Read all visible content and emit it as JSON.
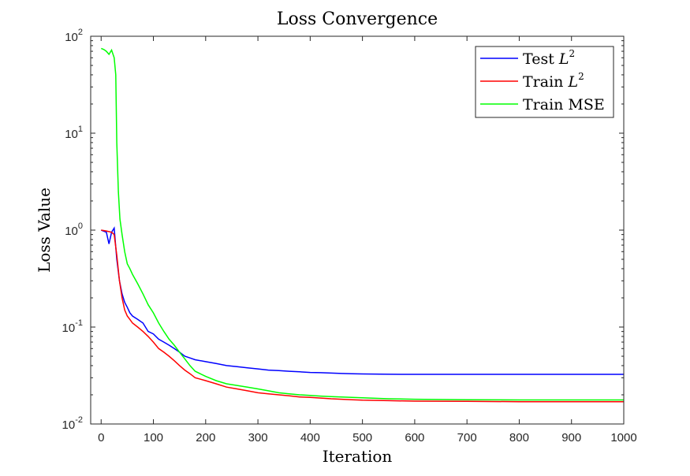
{
  "chart_data": {
    "type": "line",
    "title": "Loss Convergence",
    "xlabel": "Iteration",
    "ylabel": "Loss Value",
    "xlim": [
      -20,
      1000
    ],
    "ylim_log10": [
      -2,
      2
    ],
    "y_scale": "log",
    "x_ticks": [
      0,
      100,
      200,
      300,
      400,
      500,
      600,
      700,
      800,
      900,
      1000
    ],
    "x_tick_labels": [
      "0",
      "100",
      "200",
      "300",
      "400",
      "500",
      "600",
      "700",
      "800",
      "900",
      "1000"
    ],
    "y_ticks": [
      {
        "base": "10",
        "exp": "-2",
        "value": 0.01
      },
      {
        "base": "10",
        "exp": "-1",
        "value": 0.1
      },
      {
        "base": "10",
        "exp": "0",
        "value": 1
      },
      {
        "base": "10",
        "exp": "1",
        "value": 10
      },
      {
        "base": "10",
        "exp": "2",
        "value": 100
      }
    ],
    "legend": {
      "position": "top-right",
      "entries": [
        {
          "label": "Test",
          "math": "L",
          "sup": "2",
          "color": "#0000ff"
        },
        {
          "label": "Train",
          "math": "L",
          "sup": "2",
          "color": "#ff0000"
        },
        {
          "label": "Train MSE",
          "math": "",
          "sup": "",
          "color": "#00ff00"
        }
      ]
    },
    "series": [
      {
        "name": "Test L2",
        "color": "#0000ff",
        "x": [
          0,
          10,
          15,
          20,
          25,
          30,
          35,
          40,
          45,
          50,
          55,
          60,
          70,
          80,
          90,
          100,
          110,
          120,
          130,
          140,
          150,
          160,
          170,
          180,
          200,
          220,
          240,
          260,
          280,
          300,
          320,
          340,
          360,
          380,
          400,
          420,
          440,
          460,
          480,
          500,
          550,
          600,
          700,
          800,
          900,
          1000
        ],
        "y": [
          1.0,
          0.95,
          0.72,
          0.95,
          1.05,
          0.5,
          0.3,
          0.22,
          0.18,
          0.16,
          0.14,
          0.13,
          0.12,
          0.11,
          0.09,
          0.085,
          0.075,
          0.07,
          0.065,
          0.06,
          0.055,
          0.05,
          0.048,
          0.046,
          0.044,
          0.042,
          0.04,
          0.039,
          0.038,
          0.037,
          0.036,
          0.0355,
          0.035,
          0.0345,
          0.034,
          0.0338,
          0.0335,
          0.0332,
          0.033,
          0.0328,
          0.0326,
          0.0325,
          0.0325,
          0.0325,
          0.0325,
          0.0325
        ]
      },
      {
        "name": "Train L2",
        "color": "#ff0000",
        "x": [
          0,
          10,
          20,
          25,
          30,
          35,
          40,
          45,
          50,
          55,
          60,
          70,
          80,
          90,
          100,
          110,
          120,
          130,
          140,
          150,
          160,
          170,
          180,
          200,
          220,
          240,
          260,
          280,
          300,
          320,
          340,
          360,
          380,
          400,
          420,
          440,
          460,
          480,
          500,
          550,
          600,
          700,
          800,
          900,
          1000
        ],
        "y": [
          1.0,
          0.98,
          0.95,
          0.9,
          0.55,
          0.3,
          0.2,
          0.15,
          0.13,
          0.12,
          0.11,
          0.1,
          0.09,
          0.08,
          0.07,
          0.06,
          0.055,
          0.05,
          0.045,
          0.04,
          0.036,
          0.033,
          0.03,
          0.028,
          0.026,
          0.024,
          0.023,
          0.022,
          0.021,
          0.0205,
          0.02,
          0.0195,
          0.019,
          0.0188,
          0.0185,
          0.0182,
          0.018,
          0.0178,
          0.0176,
          0.0174,
          0.0172,
          0.0171,
          0.017,
          0.017,
          0.017
        ]
      },
      {
        "name": "Train MSE",
        "color": "#00ff00",
        "x": [
          0,
          5,
          10,
          15,
          20,
          25,
          28,
          30,
          33,
          36,
          40,
          45,
          50,
          55,
          60,
          70,
          80,
          90,
          100,
          110,
          120,
          130,
          140,
          150,
          160,
          170,
          180,
          200,
          220,
          240,
          260,
          280,
          300,
          320,
          340,
          360,
          380,
          400,
          420,
          440,
          460,
          480,
          500,
          550,
          600,
          700,
          800,
          900,
          1000
        ],
        "y": [
          75,
          73,
          70,
          65,
          72,
          60,
          40,
          8,
          2.5,
          1.3,
          0.9,
          0.6,
          0.45,
          0.4,
          0.35,
          0.28,
          0.22,
          0.17,
          0.14,
          0.11,
          0.09,
          0.075,
          0.065,
          0.055,
          0.047,
          0.04,
          0.035,
          0.031,
          0.028,
          0.026,
          0.025,
          0.024,
          0.023,
          0.022,
          0.021,
          0.0205,
          0.02,
          0.0197,
          0.0194,
          0.0192,
          0.019,
          0.0188,
          0.0186,
          0.0182,
          0.018,
          0.0178,
          0.0177,
          0.0177,
          0.0177
        ]
      }
    ]
  }
}
